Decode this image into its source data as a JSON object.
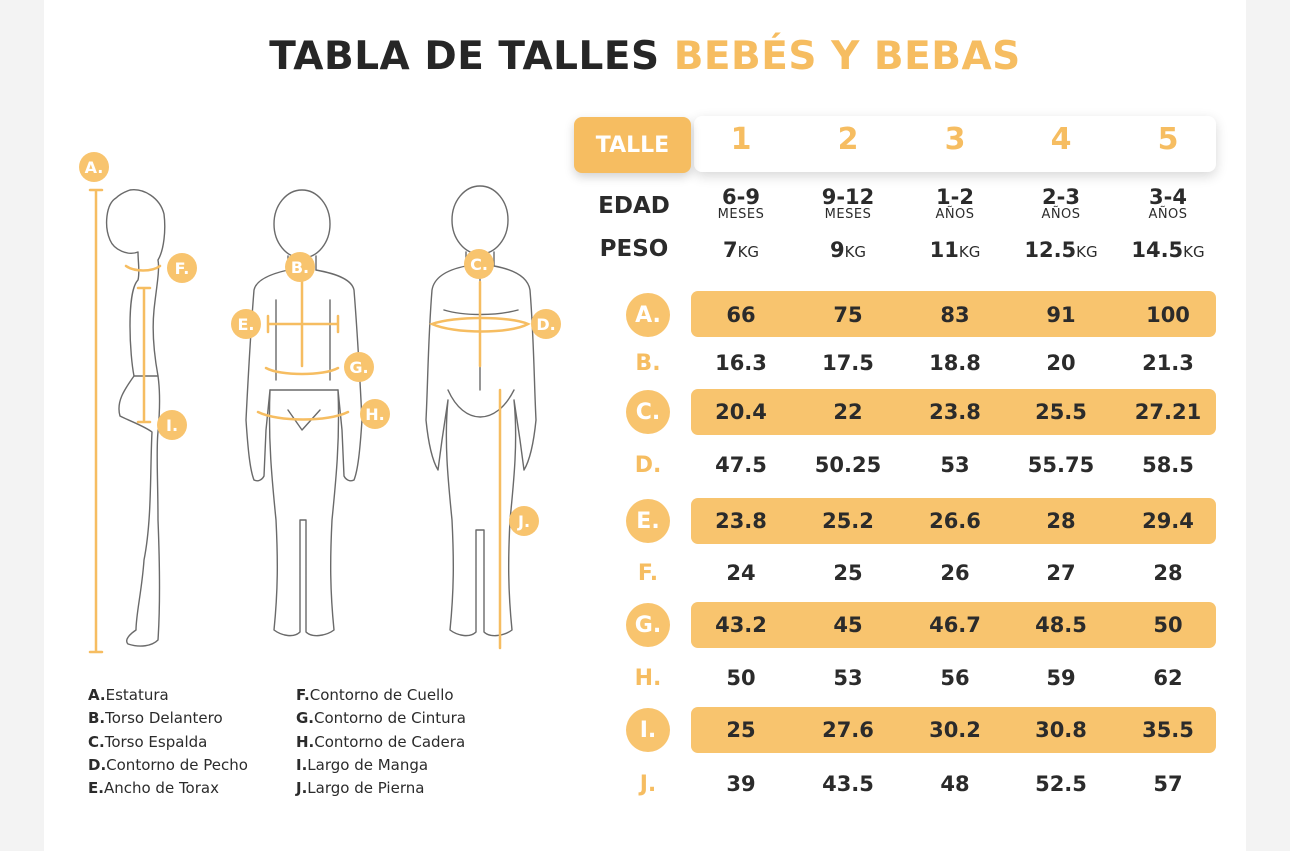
{
  "title": {
    "part1": "TABLA DE TALLES",
    "part2": "BEBÉS Y BEBAS"
  },
  "colors": {
    "accent": "#f6bd61",
    "band": "#f8c46e",
    "text": "#2b2b2b"
  },
  "header": {
    "talle_label": "TALLE",
    "sizes": [
      "1",
      "2",
      "3",
      "4",
      "5"
    ]
  },
  "edad": {
    "label": "EDAD",
    "values": [
      {
        "num": "6-9",
        "unit": "MESES"
      },
      {
        "num": "9-12",
        "unit": "MESES"
      },
      {
        "num": "1-2",
        "unit": "AÑOS"
      },
      {
        "num": "2-3",
        "unit": "AÑOS"
      },
      {
        "num": "3-4",
        "unit": "AÑOS"
      }
    ]
  },
  "peso": {
    "label": "PESO",
    "unit": "KG",
    "values": [
      "7",
      "9",
      "11",
      "12.5",
      "14.5"
    ]
  },
  "measurements": [
    {
      "letter": "A.",
      "values": [
        "66",
        "75",
        "83",
        "91",
        "100"
      ]
    },
    {
      "letter": "B.",
      "values": [
        "16.3",
        "17.5",
        "18.8",
        "20",
        "21.3"
      ]
    },
    {
      "letter": "C.",
      "values": [
        "20.4",
        "22",
        "23.8",
        "25.5",
        "27.21"
      ]
    },
    {
      "letter": "D.",
      "values": [
        "47.5",
        "50.25",
        "53",
        "55.75",
        "58.5"
      ]
    },
    {
      "letter": "E.",
      "values": [
        "23.8",
        "25.2",
        "26.6",
        "28",
        "29.4"
      ]
    },
    {
      "letter": "F.",
      "values": [
        "24",
        "25",
        "26",
        "27",
        "28"
      ]
    },
    {
      "letter": "G.",
      "values": [
        "43.2",
        "45",
        "46.7",
        "48.5",
        "50"
      ]
    },
    {
      "letter": "H.",
      "values": [
        "50",
        "53",
        "56",
        "59",
        "62"
      ]
    },
    {
      "letter": "I.",
      "values": [
        "25",
        "27.6",
        "30.2",
        "30.8",
        "35.5"
      ]
    },
    {
      "letter": "J.",
      "values": [
        "39",
        "43.5",
        "48",
        "52.5",
        "57"
      ]
    }
  ],
  "figure_badges": [
    "A.",
    "B.",
    "C.",
    "D.",
    "E.",
    "F.",
    "G.",
    "H.",
    "I.",
    "J."
  ],
  "legend": {
    "left": [
      {
        "letter": "A.",
        "text": "Estatura"
      },
      {
        "letter": "B.",
        "text": "Torso Delantero"
      },
      {
        "letter": "C.",
        "text": "Torso Espalda"
      },
      {
        "letter": "D.",
        "text": "Contorno de Pecho"
      },
      {
        "letter": "E.",
        "text": "Ancho de Torax"
      }
    ],
    "right": [
      {
        "letter": "F.",
        "text": "Contorno de Cuello"
      },
      {
        "letter": "G.",
        "text": "Contorno de Cintura"
      },
      {
        "letter": "H.",
        "text": "Contorno de Cadera"
      },
      {
        "letter": "I.",
        "text": "Largo de Manga"
      },
      {
        "letter": "J.",
        "text": "Largo de Pierna"
      }
    ]
  }
}
